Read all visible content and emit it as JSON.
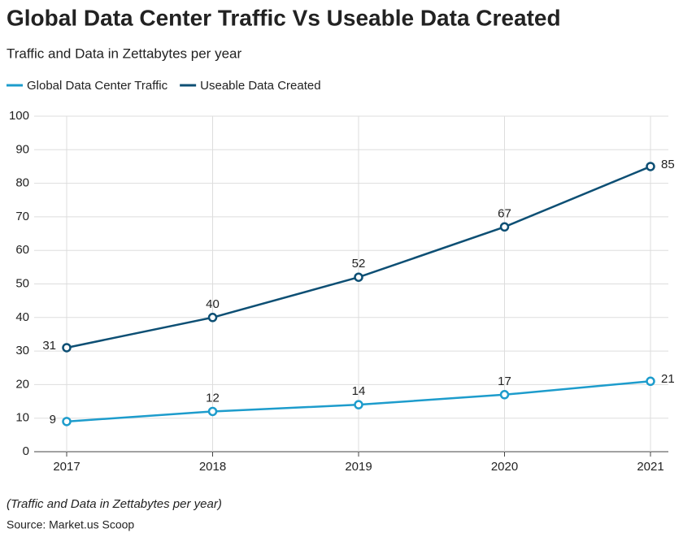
{
  "chart_data": {
    "type": "line",
    "title": "Global Data Center Traffic Vs Useable Data Created",
    "subtitle": "Traffic and Data in Zettabytes per year",
    "categories": [
      "2017",
      "2018",
      "2019",
      "2020",
      "2021"
    ],
    "series": [
      {
        "name": "Global Data Center Traffic",
        "color": "#1d9ccc",
        "values": [
          9,
          12,
          14,
          17,
          21
        ]
      },
      {
        "name": "Useable Data Created",
        "color": "#0d4f74",
        "values": [
          31,
          40,
          52,
          67,
          85
        ]
      }
    ],
    "ylim": [
      0,
      100
    ],
    "yticks": [
      0,
      10,
      20,
      30,
      40,
      50,
      60,
      70,
      80,
      90,
      100
    ],
    "grid": true,
    "legend": "top-left",
    "note": "(Traffic and Data in Zettabytes per year)",
    "source": "Source: Market.us Scoop"
  }
}
